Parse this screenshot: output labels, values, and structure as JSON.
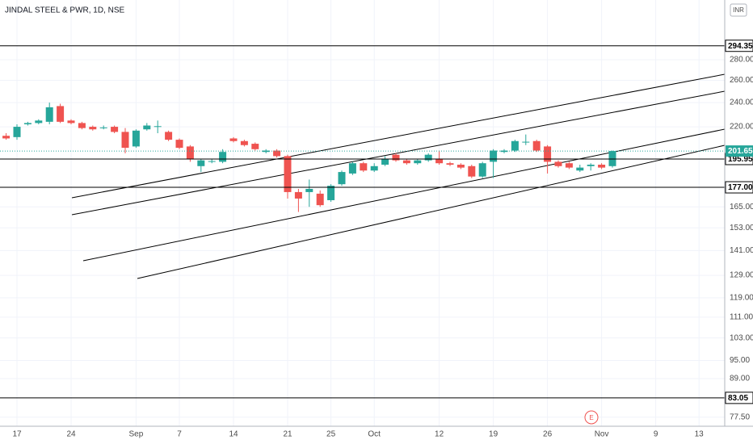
{
  "chart_data": {
    "type": "candlestick",
    "title": "JINDAL STEEL & PWR, 1D, NSE",
    "currency": "INR",
    "earnings_marker": "E",
    "log_scale": true,
    "grid": true,
    "up_color": "#26a69a",
    "down_color": "#ef5350",
    "categories": [
      null,
      "17",
      null,
      null,
      null,
      null,
      "24",
      null,
      null,
      null,
      null,
      null,
      "Sep",
      null,
      null,
      null,
      "7",
      null,
      null,
      null,
      null,
      "14",
      null,
      null,
      null,
      null,
      "21",
      null,
      null,
      null,
      "25",
      null,
      null,
      null,
      "Oct",
      null,
      null,
      null,
      null,
      null,
      "12",
      null,
      null,
      null,
      null,
      "19",
      null,
      null,
      null,
      null,
      "26",
      null,
      null,
      null,
      null,
      "Nov",
      null,
      null,
      null,
      null,
      "9",
      null,
      null,
      null,
      "13"
    ],
    "open": [
      213,
      212,
      222,
      223,
      224,
      237,
      225,
      223,
      220,
      219,
      220,
      216,
      205,
      218,
      220,
      216,
      210,
      205,
      191,
      194,
      194,
      211,
      209,
      207,
      201,
      202,
      198,
      174,
      174,
      173,
      169,
      179,
      186,
      193,
      188,
      192,
      199,
      195,
      193,
      195,
      196,
      193,
      192,
      191,
      184,
      194,
      201,
      202,
      208,
      209,
      205,
      194,
      193,
      188,
      191,
      192,
      191,
      null,
      null,
      null,
      null,
      null,
      null,
      null,
      null
    ],
    "high": [
      215,
      222,
      224,
      226,
      240,
      239,
      226,
      224,
      221,
      221,
      221,
      219,
      218,
      223,
      225,
      217,
      211,
      206,
      196,
      196,
      203,
      212,
      210,
      208,
      203,
      203,
      199,
      176,
      182,
      175,
      179,
      188,
      194,
      194,
      193,
      198,
      200,
      196,
      196,
      200,
      202,
      194,
      193,
      192,
      194,
      203,
      203,
      210,
      214,
      210,
      206,
      195,
      194,
      192,
      193,
      193,
      202,
      null,
      null,
      null,
      null,
      null,
      null,
      null,
      null
    ],
    "low": [
      210,
      210,
      221,
      222,
      222,
      223,
      222,
      218,
      217,
      218,
      215,
      200,
      204,
      217,
      215,
      209,
      203,
      194,
      187,
      193,
      193,
      208,
      205,
      202,
      200,
      197,
      170,
      162,
      165,
      165,
      168,
      178,
      185,
      187,
      187,
      191,
      194,
      192,
      192,
      194,
      192,
      191,
      189,
      183,
      183,
      183,
      200,
      201,
      206,
      201,
      186,
      190,
      189,
      187,
      188,
      189,
      190,
      null,
      null,
      null,
      null,
      null,
      null,
      null,
      null
    ],
    "close": [
      211,
      220,
      223,
      225,
      236,
      224,
      223,
      219,
      218,
      219.5,
      216,
      204,
      217,
      221,
      220.5,
      210,
      204,
      196,
      195,
      194.5,
      201,
      209,
      206,
      203,
      202,
      198,
      174,
      170,
      176,
      166,
      178,
      187,
      193,
      188,
      191,
      196,
      195,
      193,
      195,
      199,
      193,
      192,
      190,
      184,
      193,
      202,
      202,
      209,
      208.5,
      202,
      194,
      191,
      190,
      190,
      192,
      190,
      201.65,
      null,
      null,
      null,
      null,
      null,
      null,
      null,
      null
    ],
    "ylim": [
      75,
      347
    ],
    "yticks": [
      {
        "value": 77.5,
        "label": "77.50"
      },
      {
        "value": 89,
        "label": "89.00"
      },
      {
        "value": 95,
        "label": "95.00"
      },
      {
        "value": 103,
        "label": "103.00"
      },
      {
        "value": 111,
        "label": "111.00"
      },
      {
        "value": 119,
        "label": "119.00"
      },
      {
        "value": 129,
        "label": "129.00"
      },
      {
        "value": 141,
        "label": "141.00"
      },
      {
        "value": 153,
        "label": "153.00"
      },
      {
        "value": 165,
        "label": "165.00"
      },
      {
        "value": 220,
        "label": "220.00"
      },
      {
        "value": 240,
        "label": "240.00"
      },
      {
        "value": 260,
        "label": "260.00"
      },
      {
        "value": 280,
        "label": "280.00"
      }
    ],
    "levels": [
      {
        "value": 294.35,
        "label": "294.35"
      },
      {
        "value": 195.95,
        "label": "195.95"
      },
      {
        "value": 177,
        "label": "177.00"
      },
      {
        "value": 83.05,
        "label": "83.05"
      }
    ],
    "last_price": {
      "value": 201.65,
      "label": "201.65"
    }
  }
}
